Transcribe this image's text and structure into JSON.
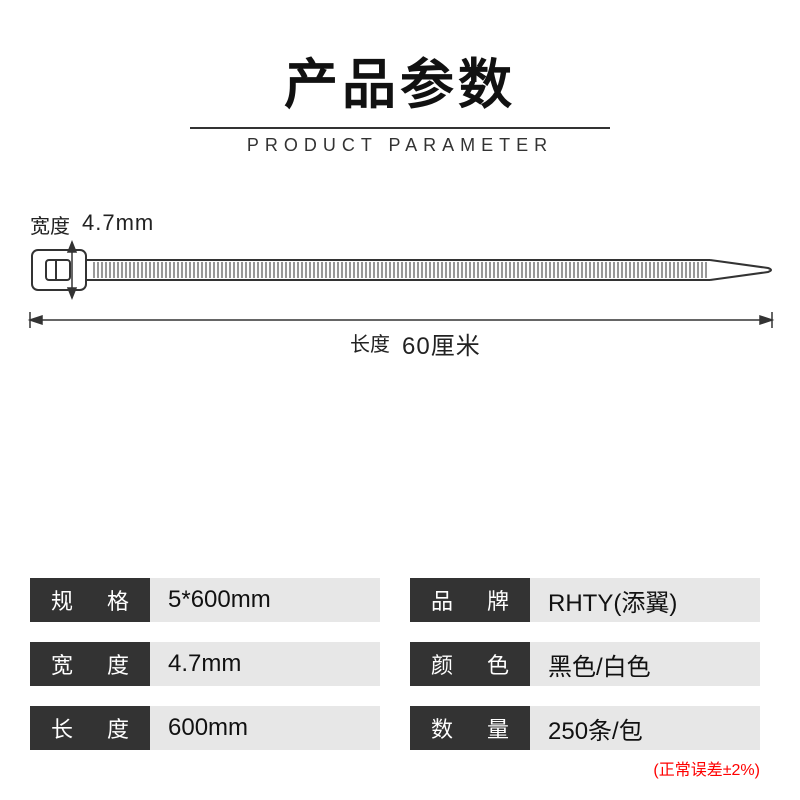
{
  "header": {
    "title_cn": "产品参数",
    "title_en": "PRODUCT PARAMETER"
  },
  "diagram": {
    "width_label": "宽度",
    "width_value": "4.7mm",
    "length_label": "长度",
    "length_value": "60厘米",
    "line_color": "#333333",
    "stroke_width": 1.5
  },
  "specs": {
    "rows": [
      {
        "left_label": "规 格",
        "left_value": "5*600mm",
        "right_label": "品 牌",
        "right_value": "RHTY(添翼)"
      },
      {
        "left_label": "宽 度",
        "left_value": "4.7mm",
        "right_label": "颜 色",
        "right_value": "黑色/白色"
      },
      {
        "left_label": "长 度",
        "left_value": "600mm",
        "right_label": "数 量",
        "right_value": "250条/包"
      }
    ],
    "label_bg": "#333333",
    "label_color": "#ffffff",
    "value_bg": "#e7e7e7",
    "value_color": "#111111",
    "font_size_label": 22,
    "font_size_value": 24
  },
  "footnote": {
    "text": "(正常误差±2%)",
    "color": "#ff0000"
  }
}
